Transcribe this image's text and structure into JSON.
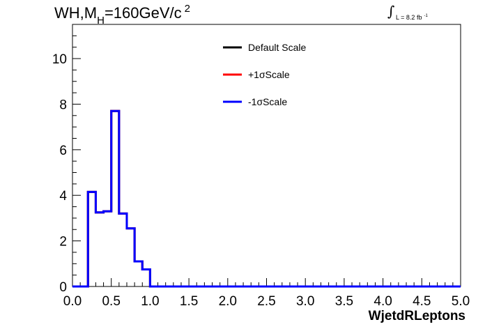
{
  "title": {
    "main": "WH,M",
    "subscript": "H",
    "rest": "=160GeV/c",
    "superscript": "2"
  },
  "luminosity": {
    "symbol": "∫",
    "text": "L = 8.2 fb",
    "superscript": "-1"
  },
  "chart_data": {
    "type": "line",
    "xlabel": "WjetdRLeptons",
    "ylabel": "",
    "xlim": [
      0,
      5
    ],
    "ylim": [
      0,
      11.5
    ],
    "x_ticks": [
      "0.0",
      "0.5",
      "1.0",
      "1.5",
      "2.0",
      "2.5",
      "3.0",
      "3.5",
      "4.0",
      "4.5",
      "5.0"
    ],
    "y_ticks": [
      "0",
      "2",
      "4",
      "6",
      "8",
      "10"
    ],
    "bin_edges": [
      0.0,
      0.1,
      0.2,
      0.3,
      0.4,
      0.5,
      0.6,
      0.7,
      0.8,
      0.9,
      1.0,
      1.1,
      1.2,
      1.3,
      1.4,
      1.5,
      1.6,
      1.7,
      1.8,
      1.9,
      2.0,
      2.1,
      2.2,
      2.3,
      2.4,
      2.5,
      2.6,
      2.7,
      2.8,
      2.9,
      3.0,
      3.1,
      3.2,
      3.3,
      3.4,
      3.5,
      3.6,
      3.7,
      3.8,
      3.9,
      4.0,
      4.1,
      4.2,
      4.3,
      4.4,
      4.5,
      4.6,
      4.7,
      4.8,
      4.9,
      5.0
    ],
    "series": [
      {
        "name": "Default Scale",
        "color": "#000000",
        "values": [
          0,
          0,
          4.15,
          3.25,
          3.3,
          7.7,
          3.2,
          2.55,
          1.1,
          0.75,
          0,
          0,
          0,
          0,
          0,
          0,
          0,
          0,
          0,
          0,
          0,
          0,
          0,
          0,
          0,
          0,
          0,
          0,
          0,
          0,
          0,
          0,
          0,
          0,
          0,
          0,
          0,
          0,
          0,
          0,
          0,
          0,
          0,
          0,
          0,
          0,
          0,
          0,
          0,
          0
        ]
      },
      {
        "name": "+1σScale",
        "color": "#ff0000",
        "values": [
          0,
          0,
          4.15,
          3.25,
          3.3,
          7.7,
          3.2,
          2.55,
          1.1,
          0.75,
          0,
          0,
          0,
          0,
          0,
          0,
          0,
          0,
          0,
          0,
          0,
          0,
          0,
          0,
          0,
          0,
          0,
          0,
          0,
          0,
          0,
          0,
          0,
          0,
          0,
          0,
          0,
          0,
          0,
          0,
          0,
          0,
          0,
          0,
          0,
          0,
          0,
          0,
          0,
          0
        ]
      },
      {
        "name": "-1σScale",
        "color": "#0000ff",
        "values": [
          0,
          0,
          4.15,
          3.25,
          3.3,
          7.7,
          3.2,
          2.55,
          1.1,
          0.75,
          0,
          0,
          0,
          0,
          0,
          0,
          0,
          0,
          0,
          0,
          0,
          0,
          0,
          0,
          0,
          0,
          0,
          0,
          0,
          0,
          0,
          0,
          0,
          0,
          0,
          0,
          0,
          0,
          0,
          0,
          0,
          0,
          0,
          0,
          0,
          0,
          0,
          0,
          0,
          0
        ]
      }
    ],
    "legend": {
      "placement": "top-center"
    }
  }
}
